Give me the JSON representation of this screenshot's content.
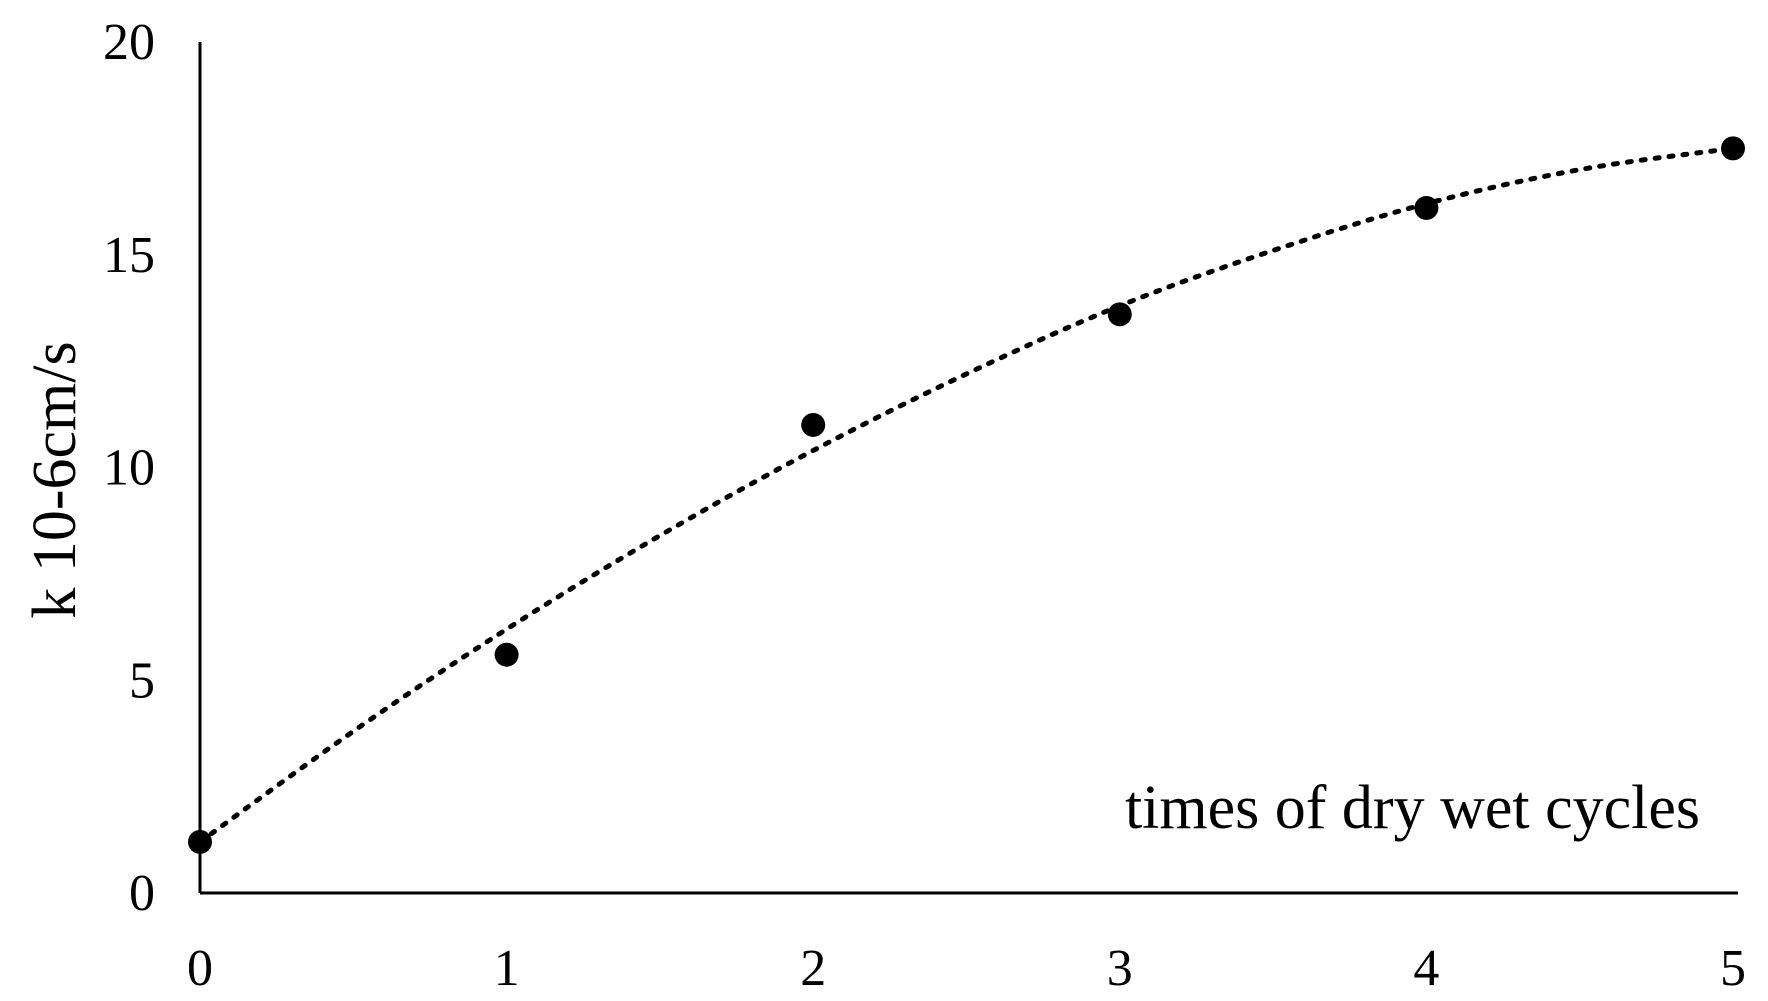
{
  "chart_data": {
    "type": "scatter",
    "title": "",
    "xlabel": "times of dry wet cycles",
    "ylabel": "k 10-6cm/s",
    "xlim": [
      0,
      5
    ],
    "ylim": [
      0,
      20
    ],
    "xticks": [
      0,
      1,
      2,
      3,
      4,
      5
    ],
    "yticks": [
      0,
      5,
      10,
      15,
      20
    ],
    "grid": false,
    "legend": "none",
    "series": [
      {
        "x": [
          0,
          1,
          2,
          3,
          4,
          5
        ],
        "y": [
          1.2,
          5.6,
          11.0,
          13.6,
          16.1,
          17.5
        ],
        "marker": "circle",
        "color": "#000000"
      }
    ],
    "trendline": {
      "style": "dotted",
      "kind": "polynomial-2",
      "x": [
        0,
        0.5,
        1,
        1.5,
        2,
        2.5,
        3,
        3.5,
        4,
        4.5,
        5
      ],
      "y": [
        1.2,
        3.8,
        6.2,
        8.4,
        10.4,
        12.2,
        13.8,
        15.1,
        16.2,
        17.0,
        17.5
      ]
    }
  }
}
